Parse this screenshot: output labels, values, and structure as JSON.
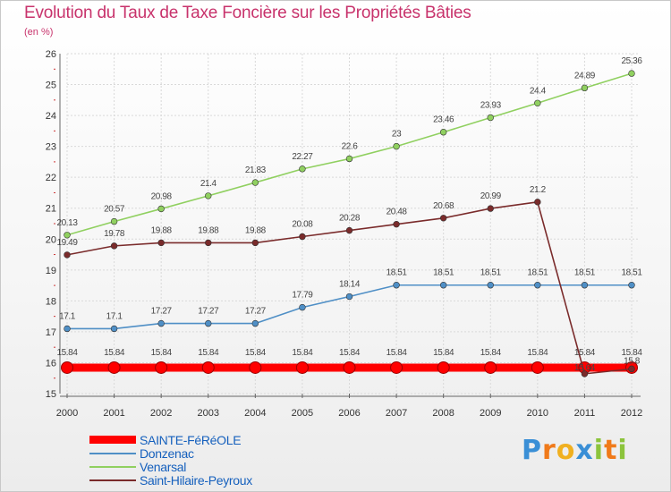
{
  "header": {
    "title": "Evolution du Taux de Taxe Foncière sur les Propriétés Bâties",
    "subtitle": "(en %)"
  },
  "colors": {
    "title": "#c8336c",
    "grid": "#d9d9d9",
    "axis": "#666666",
    "legend_text": "#1560bd"
  },
  "chart_data": {
    "type": "line",
    "title": "Evolution du Taux de Taxe Foncière sur les Propriétés Bâties",
    "ylabel": "(en %)",
    "xlabel": "",
    "x": [
      "2000",
      "2001",
      "2002",
      "2003",
      "2004",
      "2005",
      "2006",
      "2007",
      "2008",
      "2009",
      "2010",
      "2011",
      "2012"
    ],
    "ylim": [
      15,
      26
    ],
    "yticks": [
      "15",
      "16",
      "17",
      "18",
      "19",
      "20",
      "21",
      "22",
      "23",
      "24",
      "25",
      "26"
    ],
    "grid": true,
    "legend_position": "bottom-left",
    "series": [
      {
        "name": "SAINTE-FéRéOLE",
        "color": "#ff0000",
        "thick": true,
        "values": [
          15.84,
          15.84,
          15.84,
          15.84,
          15.84,
          15.84,
          15.84,
          15.84,
          15.84,
          15.84,
          15.84,
          15.84,
          15.84
        ],
        "labels": [
          "15.84",
          "15.84",
          "15.84",
          "15.84",
          "15.84",
          "15.84",
          "15.84",
          "15.84",
          "15.84",
          "15.84",
          "15.84",
          "15.84",
          "15.84"
        ]
      },
      {
        "name": "Donzenac",
        "color": "#4f8fc6",
        "thick": false,
        "values": [
          17.1,
          17.1,
          17.27,
          17.27,
          17.27,
          17.79,
          18.14,
          18.51,
          18.51,
          18.51,
          18.51,
          18.51,
          18.51
        ],
        "labels": [
          "17.1",
          "17.1",
          "17.27",
          "17.27",
          "17.27",
          "17.79",
          "18.14",
          "18.51",
          "18.51",
          "18.51",
          "18.51",
          "18.51",
          "18.51"
        ]
      },
      {
        "name": "Venarsal",
        "color": "#90d060",
        "thick": false,
        "values": [
          20.13,
          20.57,
          20.98,
          21.4,
          21.83,
          22.27,
          22.6,
          23,
          23.46,
          23.93,
          24.4,
          24.89,
          25.36
        ],
        "labels": [
          "20.13",
          "20.57",
          "20.98",
          "21.4",
          "21.83",
          "22.27",
          "22.6",
          "23",
          "23.46",
          "23.93",
          "24.4",
          "24.89",
          "25.36"
        ]
      },
      {
        "name": "Saint-Hilaire-Peyroux",
        "color": "#7a2b2b",
        "thick": false,
        "values": [
          19.49,
          19.78,
          19.88,
          19.88,
          19.88,
          20.08,
          20.28,
          20.48,
          20.68,
          20.99,
          21.2,
          15.64,
          15.8
        ],
        "labels": [
          "19.49",
          "19.78",
          "19.88",
          "19.88",
          "19.88",
          "20.08",
          "20.28",
          "20.48",
          "20.68",
          "20.99",
          "21.2",
          "15.64",
          "15.8"
        ]
      }
    ]
  },
  "logo": {
    "text": "Proxiti",
    "letters": [
      "P",
      "r",
      "o",
      "x",
      "i",
      "t",
      "i"
    ],
    "letter_colors": [
      "#3a8fd6",
      "#f07a1a",
      "#f0b020",
      "#3a8fd6",
      "#8cc43c",
      "#f07a1a",
      "#8cc43c"
    ]
  }
}
